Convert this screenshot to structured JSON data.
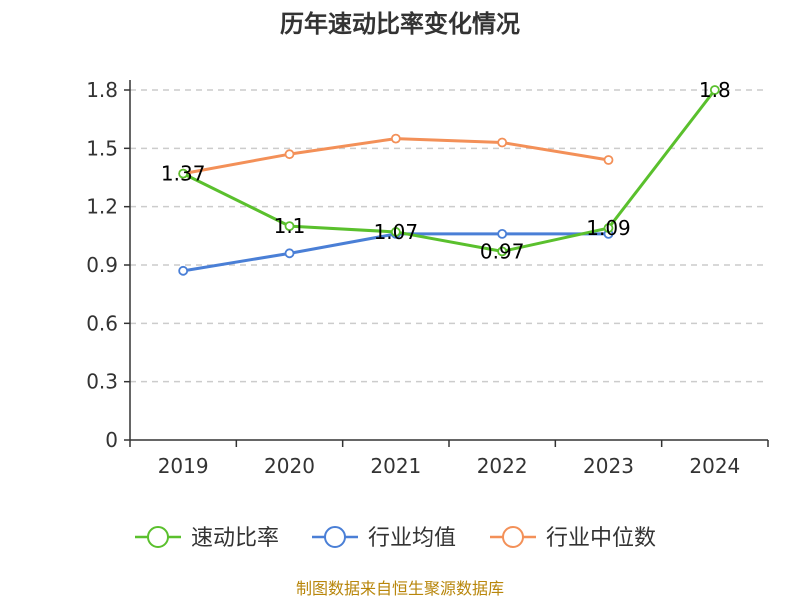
{
  "chart_data": {
    "type": "line",
    "title": "历年速动比率变化情况",
    "categories": [
      "2019",
      "2020",
      "2021",
      "2022",
      "2023",
      "2024"
    ],
    "ylim": [
      0,
      1.8
    ],
    "yticks": [
      "0",
      "0.3",
      "0.6",
      "0.9",
      "1.2",
      "1.5",
      "1.8"
    ],
    "grid": true,
    "legend_position": "bottom",
    "series": [
      {
        "name": "速动比率",
        "color": "#5ac02d",
        "values": [
          1.37,
          1.1,
          1.07,
          0.97,
          1.09,
          1.8
        ],
        "labels": [
          "1.37",
          "1.1",
          "1.07",
          "0.97",
          "1.09",
          "1.8"
        ]
      },
      {
        "name": "行业均值",
        "color": "#4a7fd6",
        "values": [
          0.87,
          0.96,
          1.06,
          1.06,
          1.06,
          null
        ]
      },
      {
        "name": "行业中位数",
        "color": "#f39058",
        "values": [
          1.37,
          1.47,
          1.55,
          1.53,
          1.44,
          null
        ]
      }
    ]
  },
  "footer": "制图数据来自恒生聚源数据库"
}
